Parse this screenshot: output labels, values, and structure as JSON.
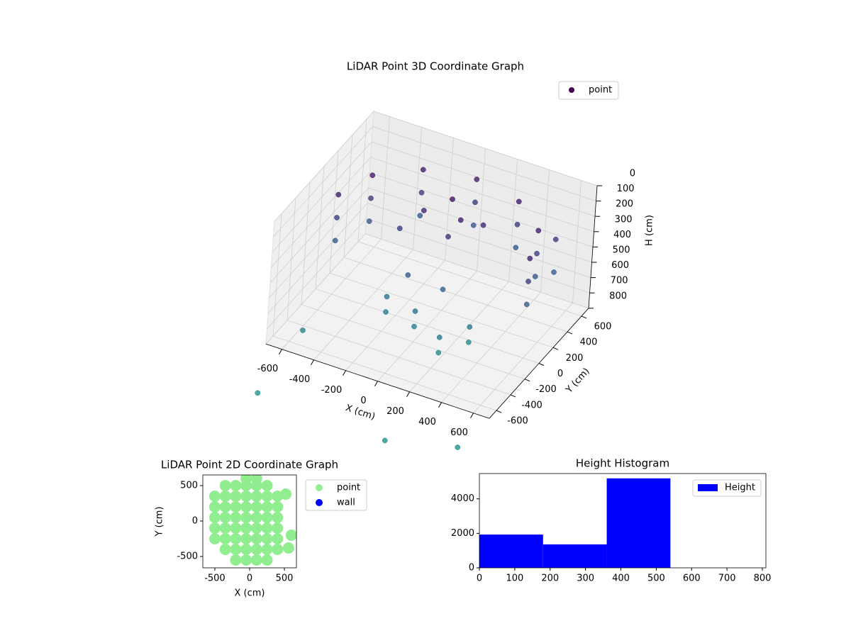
{
  "chart_data": [
    {
      "type": "scatter3d",
      "title": "LiDAR Point 3D Coordinate Graph",
      "xlabel": "X (cm)",
      "ylabel": "Y (cm)",
      "zlabel": "H (cm)",
      "xlim": [
        -700,
        700
      ],
      "ylim": [
        -700,
        700
      ],
      "zlim": [
        800,
        0
      ],
      "xticks": [
        -600,
        -400,
        -200,
        0,
        200,
        400,
        600
      ],
      "yticks": [
        -600,
        -400,
        -200,
        0,
        200,
        400,
        600
      ],
      "zticks": [
        0,
        100,
        200,
        300,
        400,
        500,
        600,
        700,
        800
      ],
      "grid": true,
      "legend": "upper right",
      "colormap": [
        "#440154",
        "#3b528b",
        "#21918c"
      ],
      "series": [
        {
          "name": "point",
          "color": "#440154",
          "x": [
            600,
            600,
            600,
            520,
            520,
            520,
            300,
            300,
            300,
            0,
            0,
            0,
            -300,
            -300,
            -300,
            -520,
            -520,
            -520,
            -600,
            -600,
            -600,
            0,
            100,
            -150,
            50,
            -250,
            200,
            -100,
            100,
            0,
            0,
            -200,
            -200,
            200,
            200,
            300,
            300,
            550,
            560,
            -520,
            -650,
            170,
            550
          ],
          "y": [
            0,
            0,
            0,
            300,
            300,
            300,
            520,
            520,
            520,
            600,
            600,
            600,
            520,
            520,
            520,
            300,
            300,
            300,
            0,
            0,
            0,
            250,
            150,
            200,
            100,
            100,
            250,
            -100,
            -50,
            -200,
            -200,
            -150,
            -150,
            -300,
            -300,
            -100,
            -100,
            500,
            480,
            -600,
            -900,
            -950,
            -780
          ],
          "z": [
            150,
            300,
            450,
            150,
            300,
            450,
            150,
            300,
            450,
            150,
            300,
            450,
            150,
            300,
            450,
            150,
            300,
            450,
            150,
            300,
            450,
            100,
            150,
            200,
            250,
            300,
            200,
            450,
            500,
            600,
            700,
            600,
            700,
            650,
            750,
            650,
            750,
            300,
            500,
            700,
            1000,
            1000,
            1000
          ]
        }
      ]
    },
    {
      "type": "scatter",
      "title": "LiDAR Point 2D Coordinate Graph",
      "xlabel": "X (cm)",
      "ylabel": "Y (cm)",
      "xlim": [
        -673,
        673
      ],
      "ylim": [
        -660,
        650
      ],
      "xticks": [
        -500,
        0,
        500
      ],
      "yticks": [
        -500,
        0,
        500
      ],
      "legend": "outside right",
      "series": [
        {
          "name": "point",
          "color": "#90ee90",
          "x": [
            -50,
            100,
            -350,
            -200,
            -50,
            100,
            250,
            -500,
            -350,
            -200,
            -50,
            100,
            250,
            400,
            -500,
            -350,
            -200,
            -50,
            100,
            250,
            400,
            -500,
            -350,
            -200,
            -50,
            100,
            250,
            400,
            -500,
            -350,
            -200,
            -50,
            100,
            250,
            400,
            -500,
            -350,
            -200,
            -50,
            100,
            250,
            400,
            -350,
            -200,
            -50,
            100,
            250,
            400,
            -200,
            -50,
            100,
            250,
            520,
            560,
            600
          ],
          "y": [
            600,
            600,
            500,
            500,
            500,
            500,
            500,
            350,
            350,
            350,
            350,
            350,
            350,
            350,
            200,
            200,
            200,
            200,
            200,
            200,
            200,
            50,
            50,
            50,
            50,
            50,
            50,
            50,
            -100,
            -100,
            -100,
            -100,
            -100,
            -100,
            -100,
            -250,
            -250,
            -250,
            -250,
            -250,
            -250,
            -250,
            -400,
            -400,
            -400,
            -400,
            -400,
            -400,
            -550,
            -550,
            -550,
            -550,
            380,
            -380,
            -200
          ]
        },
        {
          "name": "wall",
          "color": "#0000ff",
          "x": [],
          "y": []
        }
      ]
    },
    {
      "type": "histogram",
      "title": "Height Histogram",
      "name": "Height",
      "color": "#0000ff",
      "bins": [
        0,
        180,
        360,
        540
      ],
      "values": [
        1930,
        1360,
        5190
      ],
      "xlim": [
        0,
        810
      ],
      "ylim": [
        0,
        5470
      ],
      "xticks": [
        0,
        100,
        200,
        300,
        400,
        500,
        600,
        700,
        800
      ],
      "yticks": [
        0,
        2000,
        4000
      ],
      "legend": "upper right"
    }
  ]
}
